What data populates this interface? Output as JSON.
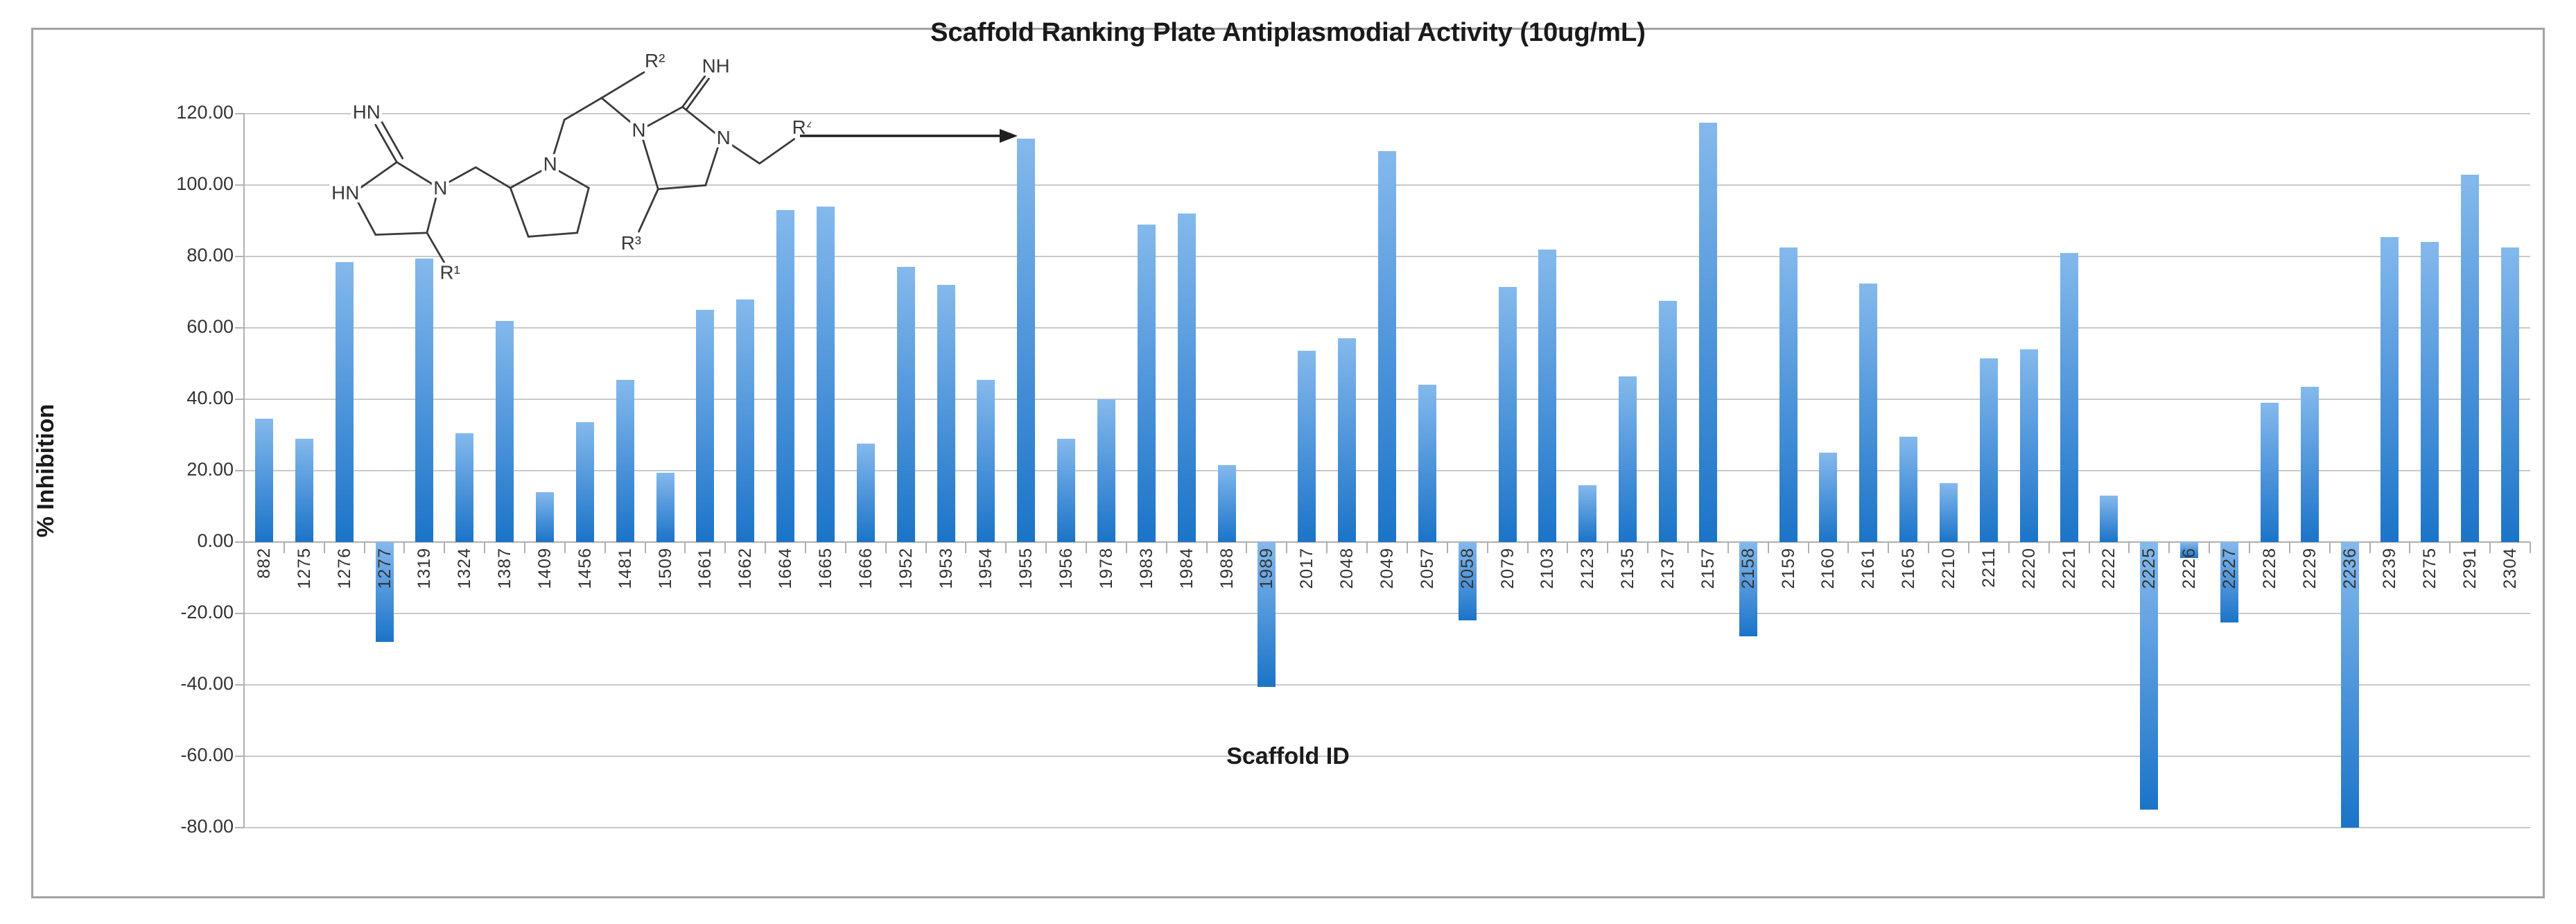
{
  "figure": {
    "title": "Scaffold Ranking Plate Antiplasmodial Activity (10ug/mL)",
    "x_axis_title": "Scaffold ID",
    "y_axis_title": "% Inhibition"
  },
  "chart_data": {
    "type": "bar",
    "title": "Scaffold Ranking Plate Antiplasmodial Activity (10ug/mL)",
    "xlabel": "Scaffold ID",
    "ylabel": "% Inhibition",
    "ylim": [
      -80,
      120
    ],
    "ytick_step": 20,
    "ytick_decimals": 2,
    "grid": true,
    "legend": false,
    "categories": [
      "882",
      "1275",
      "1276",
      "1277",
      "1319",
      "1324",
      "1387",
      "1409",
      "1456",
      "1481",
      "1509",
      "1661",
      "1662",
      "1664",
      "1665",
      "1666",
      "1952",
      "1953",
      "1954",
      "1955",
      "1956",
      "1978",
      "1983",
      "1984",
      "1988",
      "1989",
      "2017",
      "2048",
      "2049",
      "2057",
      "2058",
      "2079",
      "2103",
      "2123",
      "2135",
      "2137",
      "2157",
      "2158",
      "2159",
      "2160",
      "2161",
      "2165",
      "2210",
      "2211",
      "2220",
      "2221",
      "2222",
      "2225",
      "2226",
      "2227",
      "2228",
      "2229",
      "2236",
      "2239",
      "2275",
      "2291",
      "2304"
    ],
    "values": [
      34.5,
      29,
      78.5,
      -28,
      79.5,
      30.5,
      62,
      14,
      33.5,
      45.5,
      19.5,
      65,
      68,
      93,
      94,
      27.5,
      77,
      72,
      45.5,
      113,
      29,
      40,
      89,
      92,
      21.5,
      -40.5,
      53.5,
      57,
      109.5,
      44,
      -22,
      71.5,
      82,
      16,
      46.5,
      67.5,
      117.5,
      -26.5,
      82.5,
      25,
      72.5,
      29.5,
      16.5,
      51.5,
      54,
      81,
      13,
      -75,
      -4.5,
      -22.5,
      39,
      43.5,
      -80,
      85.5,
      84,
      103,
      82.5
    ]
  },
  "structure_labels": {
    "imine_left": "HN",
    "amine_left": "HN",
    "n_left": "N",
    "n_center": "N",
    "n_right1": "N",
    "n_right2": "N",
    "imine_right": "NH",
    "r1": "R¹",
    "r2": "R²",
    "r3": "R³",
    "r4": "R⁴"
  },
  "colors": {
    "bar-top": "#84b9ec",
    "bar-mid": "#4a92d9",
    "bar-bottom": "#1b74c8",
    "gridline": "#c9c9c9",
    "axis": "#b0b0b0",
    "text": "#333333",
    "border": "#a3a3a3",
    "structure": "#3a3a3a"
  }
}
